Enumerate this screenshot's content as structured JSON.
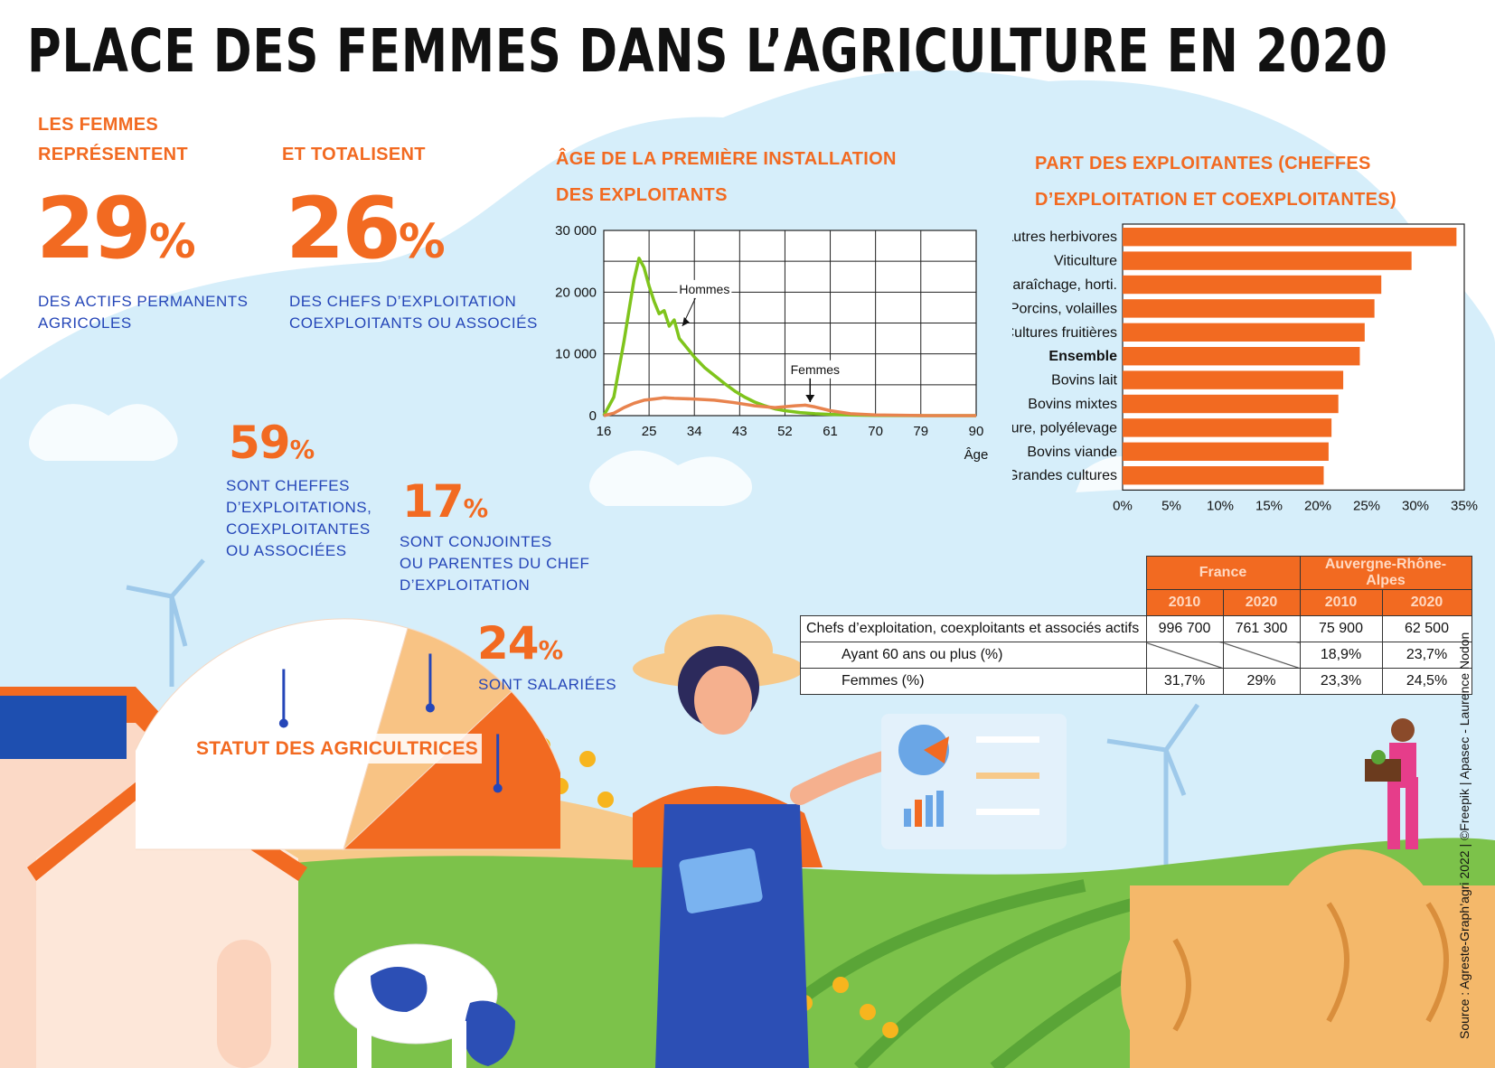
{
  "header": {
    "title": "PLACE DES FEMMES DANS L’AGRICULTURE EN 2020"
  },
  "stats": {
    "s1": {
      "heading_line1": "LES FEMMES",
      "heading_line2": "REPRÉSENTENT",
      "value": "29",
      "unit": "%",
      "desc_line1": "DES ACTIFS PERMANENTS",
      "desc_line2": "AGRICOLES"
    },
    "s2": {
      "heading": "ET TOTALISENT",
      "value": "26",
      "unit": "%",
      "desc_line1": "DES CHEFS D’EXPLOITATION",
      "desc_line2": "COEXPLOITANTS OU ASSOCIÉS"
    }
  },
  "status": {
    "title": "STATUT DES AGRICULTRICES",
    "items": [
      {
        "value": "59",
        "unit": "%",
        "lines": [
          "SONT  CHEFFES",
          "D’EXPLOITATIONS,",
          "COEXPLOITANTES",
          "OU ASSOCIÉES"
        ]
      },
      {
        "value": "17",
        "unit": "%",
        "lines": [
          "SONT  CONJOINTES",
          "OU PARENTES DU CHEF",
          "D’EXPLOITATION"
        ]
      },
      {
        "value": "24",
        "unit": "%",
        "lines": [
          "SONT SALARIÉES"
        ]
      }
    ]
  },
  "chart_data": [
    {
      "type": "line",
      "title_line1": "ÂGE DE LA PREMIÈRE INSTALLATION",
      "title_line2": "DES EXPLOITANTS",
      "xlabel": "Âge",
      "ylabel": "",
      "xlim": [
        16,
        90
      ],
      "ylim": [
        0,
        30000
      ],
      "x_ticks": [
        16,
        25,
        34,
        43,
        52,
        61,
        70,
        79,
        90
      ],
      "y_ticks": [
        0,
        10000,
        20000,
        30000
      ],
      "y_tick_labels": [
        "0",
        "10 000",
        "20 000",
        "30 000"
      ],
      "grid": true,
      "series": [
        {
          "name": "Hommes",
          "color": "#7fc41c",
          "x": [
            16,
            18,
            20,
            22,
            23,
            24,
            25,
            26,
            27,
            28,
            29,
            30,
            31,
            32,
            34,
            36,
            38,
            40,
            42,
            44,
            46,
            48,
            50,
            52,
            55,
            58,
            61,
            65,
            70,
            80,
            90
          ],
          "y": [
            0,
            3000,
            12000,
            22000,
            25500,
            24000,
            21000,
            18500,
            16500,
            17000,
            14500,
            15500,
            12500,
            11500,
            9500,
            7800,
            6500,
            5200,
            4000,
            3000,
            2200,
            1600,
            1100,
            800,
            500,
            300,
            200,
            100,
            50,
            0,
            0
          ]
        },
        {
          "name": "Femmes",
          "color": "#e8834e",
          "x": [
            16,
            18,
            20,
            22,
            24,
            26,
            28,
            30,
            34,
            38,
            42,
            46,
            50,
            54,
            56,
            58,
            61,
            65,
            70,
            80,
            90
          ],
          "y": [
            0,
            400,
            1300,
            2000,
            2500,
            2700,
            2900,
            2800,
            2700,
            2500,
            2100,
            1600,
            1300,
            1600,
            1700,
            1400,
            800,
            300,
            100,
            0,
            0
          ]
        }
      ]
    },
    {
      "type": "bar",
      "orientation": "horizontal",
      "title_line1": "PART DES EXPLOITANTES (CHEFFES",
      "title_line2": "D’EXPLOITATION ET COEXPLOITANTES)",
      "xlabel": "",
      "ylabel": "",
      "xlim": [
        0,
        35
      ],
      "x_ticks": [
        "0%",
        "5%",
        "10%",
        "15%",
        "20%",
        "25%",
        "30%",
        "35%"
      ],
      "categories": [
        "Ovins, autres herbivores",
        "Viticulture",
        "Maraîchage, horti.",
        "Porcins, volailles",
        "Cultures fruitières",
        "Ensemble",
        "Bovins lait",
        "Bovins mixtes",
        "Polyculture, polyélevage",
        "Bovins viande",
        "Grandes cultures"
      ],
      "values": [
        34.2,
        29.6,
        26.5,
        25.8,
        24.8,
        24.3,
        22.6,
        22.1,
        21.4,
        21.1,
        20.6
      ],
      "highlight": "Ensemble",
      "color": "#f26a21"
    },
    {
      "type": "table",
      "groups": [
        "France",
        "Auvergne-Rhône-Alpes"
      ],
      "years": [
        "2010",
        "2020",
        "2010",
        "2020"
      ],
      "rows": [
        {
          "label": "Chefs d’exploitation, coexploitants et associés actifs",
          "values": [
            "996 700",
            "761 300",
            "75 900",
            "62 500"
          ]
        },
        {
          "label": "Ayant 60 ans ou plus (%)",
          "values": [
            "",
            "",
            "18,9%",
            "23,7%"
          ]
        },
        {
          "label": "Femmes (%)",
          "values": [
            "31,7%",
            "29%",
            "23,3%",
            "24,5%"
          ]
        }
      ]
    }
  ],
  "source": "Source : Agreste-Graph’agri 2022 | ©Freepik | Apasec - Laurence Nodon",
  "colors": {
    "orange": "#f26a21",
    "blue": "#2546b8",
    "sky": "#d6eefa",
    "field": "#7cc24a"
  }
}
